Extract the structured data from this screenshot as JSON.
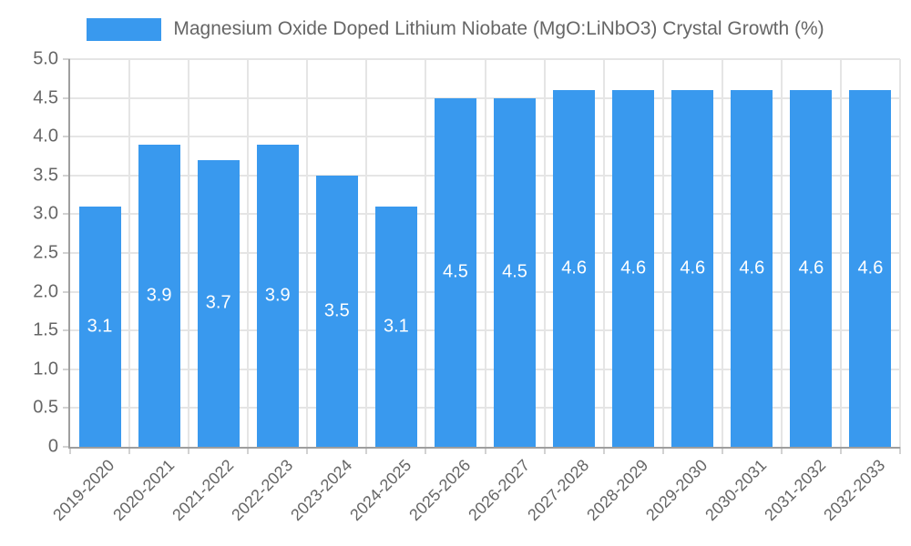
{
  "chart_data": {
    "type": "bar",
    "title": "Magnesium Oxide Doped Lithium Niobate (MgO:LiNbO3) Crystal Growth (%)",
    "categories": [
      "2019-2020",
      "2020-2021",
      "2021-2022",
      "2022-2023",
      "2023-2024",
      "2024-2025",
      "2025-2026",
      "2026-2027",
      "2027-2028",
      "2028-2029",
      "2029-2030",
      "2030-2031",
      "2031-2032",
      "2032-2033"
    ],
    "values": [
      3.1,
      3.9,
      3.7,
      3.9,
      3.5,
      3.1,
      4.5,
      4.5,
      4.6,
      4.6,
      4.6,
      4.6,
      4.6,
      4.6
    ],
    "bar_value_labels": [
      "3.1",
      "3.9",
      "3.7",
      "3.9",
      "3.5",
      "3.1",
      "4.5",
      "4.5",
      "4.6",
      "4.6",
      "4.6",
      "4.6",
      "4.6",
      "4.6"
    ],
    "xlabel": "",
    "ylabel": "",
    "ylim": [
      0,
      5
    ],
    "ytick_labels_top_to_bottom": [
      "5.0",
      "4.5",
      "4.0",
      "3.5",
      "3.0",
      "2.5",
      "2.0",
      "1.5",
      "1.0",
      "0.5",
      "0"
    ],
    "grid": "on",
    "legend_position": "top"
  },
  "colors": {
    "bar": "#3999ee",
    "grid": "#e5e5e5",
    "tick": "#d2d2d2",
    "axis": "#9e9e9e",
    "text": "#666666",
    "bar_label_text": "#ffffff",
    "background": "#ffffff"
  }
}
